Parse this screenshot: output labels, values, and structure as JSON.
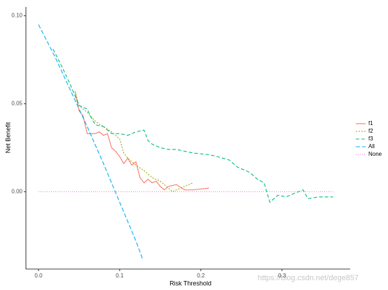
{
  "chart_data": {
    "type": "line",
    "xlabel": "Risk Threshold",
    "ylabel": "Net Benefit",
    "watermark": "https://blog.csdn.net/dege857",
    "xlim": [
      -0.0155,
      0.384
    ],
    "ylim": [
      -0.044,
      0.105
    ],
    "xticks": [
      {
        "value": 0,
        "label": "0.0"
      },
      {
        "value": 0.1,
        "label": "0.1"
      },
      {
        "value": 0.2,
        "label": "0.2"
      },
      {
        "value": 0.3,
        "label": "0.3"
      }
    ],
    "yticks": [
      {
        "value": 0,
        "label": "0.00"
      },
      {
        "value": 0.05,
        "label": "0.05"
      },
      {
        "value": 0.1,
        "label": "0.10"
      }
    ],
    "grid": false,
    "legend": "right",
    "series": [
      {
        "name": "f1",
        "color": "#F8766D",
        "dash": "none",
        "x": [
          0.045,
          0.05,
          0.055,
          0.06,
          0.07,
          0.075,
          0.08,
          0.085,
          0.09,
          0.095,
          0.1,
          0.105,
          0.11,
          0.115,
          0.12,
          0.125,
          0.13,
          0.135,
          0.14,
          0.145,
          0.15,
          0.155,
          0.16,
          0.17,
          0.18,
          0.19,
          0.21
        ],
        "values": [
          0.057,
          0.046,
          0.043,
          0.033,
          0.033,
          0.034,
          0.032,
          0.033,
          0.025,
          0.023,
          0.02,
          0.016,
          0.019,
          0.015,
          0.017,
          0.008,
          0.005,
          0.007,
          0.005,
          0.006,
          0.003,
          0.001,
          0.003,
          0.004,
          0.001,
          0.001,
          0.002
        ]
      },
      {
        "name": "f2",
        "color": "#A3A500",
        "dash": "2,2",
        "x": [
          0.045,
          0.05,
          0.06,
          0.07,
          0.08,
          0.09,
          0.1,
          0.105,
          0.11,
          0.12,
          0.13,
          0.14,
          0.15,
          0.16,
          0.165,
          0.17,
          0.18,
          0.19
        ],
        "values": [
          0.057,
          0.049,
          0.045,
          0.04,
          0.037,
          0.034,
          0.03,
          0.022,
          0.019,
          0.015,
          0.012,
          0.008,
          0.006,
          0.002,
          0.0,
          0.001,
          0.003,
          0.005
        ]
      },
      {
        "name": "f3",
        "color": "#00BF7D",
        "dash": "5,3",
        "x": [
          0.018,
          0.03,
          0.04,
          0.05,
          0.06,
          0.065,
          0.07,
          0.08,
          0.09,
          0.1,
          0.11,
          0.12,
          0.13,
          0.135,
          0.14,
          0.15,
          0.16,
          0.17,
          0.19,
          0.21,
          0.22,
          0.235,
          0.245,
          0.26,
          0.27,
          0.278,
          0.285,
          0.295,
          0.305,
          0.315,
          0.326,
          0.332,
          0.345,
          0.363
        ],
        "values": [
          0.081,
          0.07,
          0.06,
          0.049,
          0.047,
          0.042,
          0.038,
          0.037,
          0.033,
          0.033,
          0.032,
          0.034,
          0.035,
          0.029,
          0.027,
          0.025,
          0.024,
          0.024,
          0.022,
          0.021,
          0.02,
          0.018,
          0.014,
          0.011,
          0.007,
          0.005,
          -0.006,
          -0.002,
          -0.003,
          -0.001,
          0.001,
          -0.004,
          -0.003,
          -0.003
        ]
      },
      {
        "name": "All",
        "color": "#00B0F6",
        "dash": "6,3",
        "x": [
          0,
          0.02,
          0.04,
          0.06,
          0.08,
          0.1,
          0.12,
          0.128
        ],
        "values": [
          0.095,
          0.077,
          0.057,
          0.037,
          0.016,
          -0.006,
          -0.028,
          -0.038
        ]
      },
      {
        "name": "None",
        "color": "#F564E3",
        "dash": "1,2",
        "x": [
          0,
          0.363
        ],
        "values": [
          0,
          0
        ]
      }
    ]
  }
}
